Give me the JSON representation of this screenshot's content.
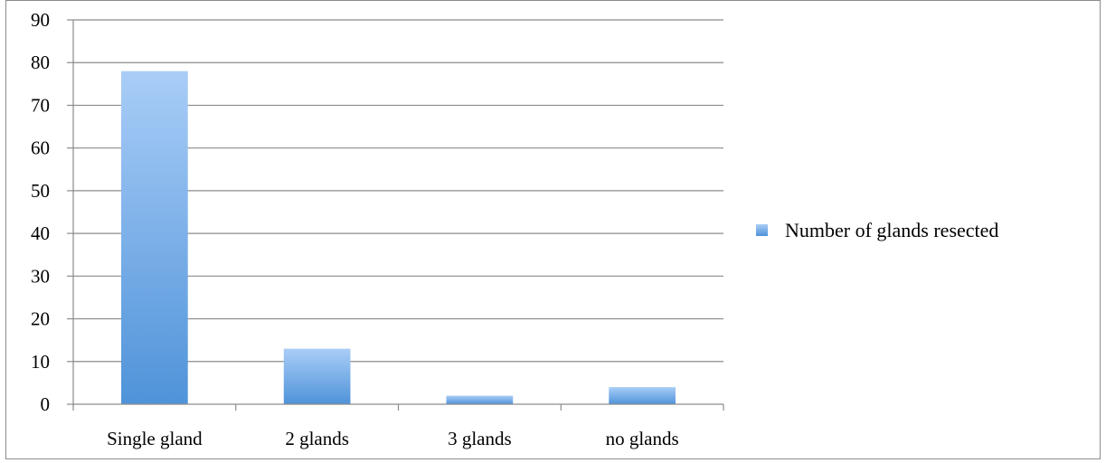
{
  "chart_data": {
    "type": "bar",
    "categories": [
      "Single gland",
      "2 glands",
      "3 glands",
      "no glands"
    ],
    "series": [
      {
        "name": "Number of glands resected",
        "values": [
          78,
          13,
          2,
          4
        ]
      }
    ],
    "ylim": [
      0,
      90
    ],
    "yticks": [
      0,
      10,
      20,
      30,
      40,
      50,
      60,
      70,
      80,
      90
    ],
    "grid": true,
    "legend_position": "right",
    "colors": {
      "bar_top": "#a9cdf7",
      "bar_bottom": "#4f93d9",
      "grid": "#8c8c8c",
      "axis": "#8c8c8c"
    }
  }
}
